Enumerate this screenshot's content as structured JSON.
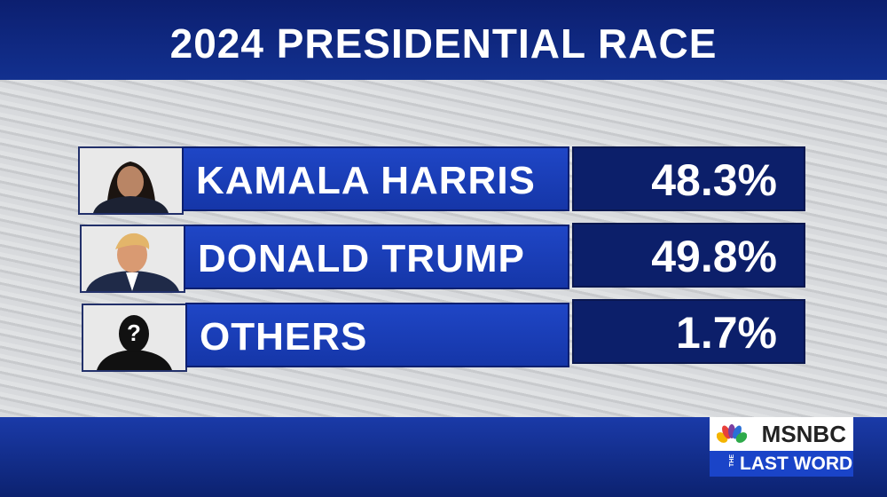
{
  "header": {
    "title": "2024 PRESIDENTIAL RACE"
  },
  "rows": [
    {
      "name": "KAMALA HARRIS",
      "share": "48.3%"
    },
    {
      "name": "DONALD TRUMP",
      "share": "49.8%"
    },
    {
      "name": "OTHERS",
      "share": "1.7%",
      "placeholder_mark": "?"
    }
  ],
  "logo": {
    "network": "MSNBC",
    "show_prefix": "THE",
    "show": "LAST WORD"
  }
}
